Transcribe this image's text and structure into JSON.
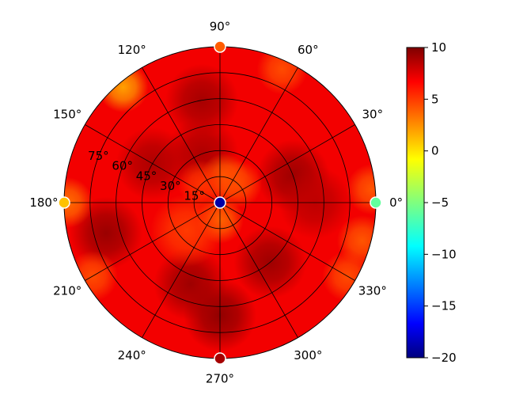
{
  "chart_data": {
    "type": "heatmap",
    "subtype": "polar",
    "title": "",
    "angular_ticks_deg": [
      0,
      30,
      60,
      90,
      120,
      150,
      180,
      210,
      240,
      270,
      300,
      330
    ],
    "angular_tick_labels": [
      "0°",
      "30°",
      "60°",
      "90°",
      "120°",
      "150°",
      "180°",
      "210°",
      "240°",
      "270°",
      "300°",
      "330°"
    ],
    "radial_ticks_deg": [
      15,
      30,
      45,
      60,
      75
    ],
    "radial_tick_labels": [
      "15°",
      "30°",
      "45°",
      "60°",
      "75°"
    ],
    "radial_range": [
      0,
      90
    ],
    "colorbar": {
      "colormap": "jet",
      "range": [
        -20,
        10
      ],
      "ticks": [
        10,
        5,
        0,
        -5,
        -10,
        -15,
        -20
      ],
      "tick_labels": [
        "10",
        "5",
        "0",
        "−5",
        "−10",
        "−15",
        "−20"
      ]
    },
    "background_level": 7,
    "hotspots": [
      {
        "az": 270,
        "el": 65,
        "value": 9.5
      },
      {
        "az": 195,
        "el": 68,
        "value": 9.3
      },
      {
        "az": 250,
        "el": 50,
        "value": 9.2
      },
      {
        "az": 310,
        "el": 45,
        "value": 9.2
      },
      {
        "az": 20,
        "el": 45,
        "value": 9.2
      },
      {
        "az": 100,
        "el": 60,
        "value": 9.0
      },
      {
        "az": 150,
        "el": 45,
        "value": 8.8
      },
      {
        "az": 110,
        "el": 30,
        "value": 8.8
      },
      {
        "az": 0,
        "el": 55,
        "value": 8.4
      },
      {
        "az": 80,
        "el": 15,
        "value": 4.0
      },
      {
        "az": 45,
        "el": 15,
        "value": 4.5
      },
      {
        "az": 270,
        "el": 10,
        "value": 3.8
      },
      {
        "az": 135,
        "el": 15,
        "value": 5.2
      },
      {
        "az": 130,
        "el": 87,
        "value": 2.0
      },
      {
        "az": 65,
        "el": 85,
        "value": 4.5
      },
      {
        "az": 5,
        "el": 88,
        "value": 4.2
      },
      {
        "az": 345,
        "el": 85,
        "value": 4.2
      },
      {
        "az": 210,
        "el": 85,
        "value": 4.5
      },
      {
        "az": 180,
        "el": 88,
        "value": 3.5
      },
      {
        "az": 330,
        "el": 85,
        "value": 4.5
      },
      {
        "az": 220,
        "el": 25,
        "value": 5.0
      }
    ],
    "markers": [
      {
        "az": 0,
        "el": 90,
        "value": -6,
        "label": "green dot at 0°"
      },
      {
        "az": 90,
        "el": 90,
        "value": 4,
        "label": "orange dot at 90°"
      },
      {
        "az": 180,
        "el": 90,
        "value": 1,
        "label": "yellow dot at 180°"
      },
      {
        "az": 270,
        "el": 90,
        "value": 9,
        "label": "red dot at 270°"
      },
      {
        "az": 0,
        "el": 0,
        "value": -19,
        "label": "blue dot at center"
      }
    ]
  }
}
